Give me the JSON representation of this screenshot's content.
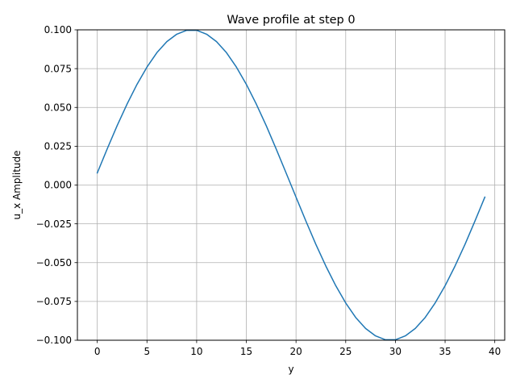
{
  "chart_data": {
    "type": "line",
    "title": "Wave profile at step 0",
    "xlabel": "y",
    "ylabel": "u_x Amplitude",
    "xlim": [
      -2.0,
      41.0
    ],
    "ylim": [
      -0.1,
      0.1
    ],
    "x_ticks": [
      0,
      5,
      10,
      15,
      20,
      25,
      30,
      35,
      40
    ],
    "x_tick_labels": [
      "0",
      "5",
      "10",
      "15",
      "20",
      "25",
      "30",
      "35",
      "40"
    ],
    "y_ticks": [
      -0.1,
      -0.075,
      -0.05,
      -0.025,
      0.0,
      0.025,
      0.05,
      0.075,
      0.1
    ],
    "y_tick_labels": [
      "−0.100",
      "−0.075",
      "−0.050",
      "−0.025",
      "0.000",
      "0.025",
      "0.050",
      "0.075",
      "0.100"
    ],
    "grid": true,
    "colors": {
      "series": "#1f77b4",
      "grid": "#b0b0b0"
    },
    "series": [
      {
        "x": [
          0,
          1,
          2,
          3,
          4,
          5,
          6,
          7,
          8,
          9,
          10,
          11,
          12,
          13,
          14,
          15,
          16,
          17,
          18,
          19,
          20,
          21,
          22,
          23,
          24,
          25,
          26,
          27,
          28,
          29,
          30,
          31,
          32,
          33,
          34,
          35,
          36,
          37,
          38,
          39
        ],
        "values": [
          0.0078,
          0.0233,
          0.0383,
          0.0522,
          0.0649,
          0.076,
          0.0853,
          0.0924,
          0.0972,
          0.0997,
          0.0997,
          0.0972,
          0.0924,
          0.0853,
          0.076,
          0.0649,
          0.0522,
          0.0383,
          0.0233,
          0.0078,
          -0.0078,
          -0.0233,
          -0.0383,
          -0.0522,
          -0.0649,
          -0.076,
          -0.0853,
          -0.0924,
          -0.0972,
          -0.0997,
          -0.0997,
          -0.0972,
          -0.0924,
          -0.0853,
          -0.076,
          -0.0649,
          -0.0522,
          -0.0383,
          -0.0233,
          -0.0078
        ]
      }
    ]
  }
}
